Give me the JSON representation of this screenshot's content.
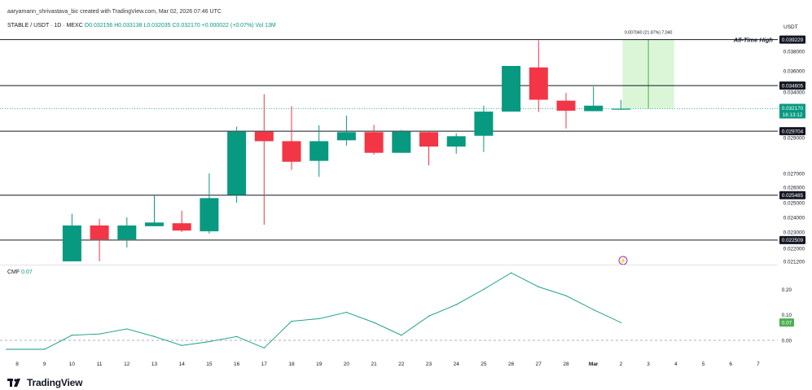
{
  "header": {
    "author_line": "aaryamann_shrivastava_bic created with TradingView.com, Mar 02, 2026 07:46 UTC",
    "symbol": "STABLE / USDT · 1D · MEXC",
    "ohlc": "O0.032156 H0.033138 L0.032035 C0.032170 +0.000022 (+0.07%)",
    "volume": "Vol 13M"
  },
  "currency_label": "USDT",
  "indicator": {
    "name": "CMF",
    "value": "0.07"
  },
  "brand": {
    "name": "TradingView"
  },
  "annotations": {
    "ath_label": "All-Time High",
    "measure_label": "0.007040 (21.87%) 7,040"
  },
  "chart_data": [
    {
      "type": "candlestick",
      "symbol": "STABLE / USDT",
      "interval": "1D",
      "exchange": "MEXC",
      "x_tick_labels": [
        "8",
        "9",
        "10",
        "11",
        "12",
        "13",
        "14",
        "15",
        "16",
        "17",
        "18",
        "19",
        "20",
        "21",
        "22",
        "23",
        "24",
        "25",
        "26",
        "27",
        "28",
        "Mar",
        "2",
        "3",
        "4",
        "5",
        "6",
        "7"
      ],
      "y_tick_labels": [
        "0.038000",
        "0.036000",
        "0.034000",
        "0.029000",
        "0.027000",
        "0.026000",
        "0.025000",
        "0.024000",
        "0.023000",
        "0.022000",
        "0.021200"
      ],
      "ylim": [
        0.0208,
        0.04
      ],
      "candles": [
        {
          "date": "10",
          "open": 0.0212,
          "high": 0.02425,
          "low": 0.0212,
          "close": 0.02345,
          "color": "up"
        },
        {
          "date": "11",
          "open": 0.02345,
          "high": 0.0239,
          "low": 0.0212,
          "close": 0.02255,
          "color": "down"
        },
        {
          "date": "12",
          "open": 0.02255,
          "high": 0.024,
          "low": 0.02205,
          "close": 0.02345,
          "color": "up"
        },
        {
          "date": "13",
          "open": 0.0234,
          "high": 0.02545,
          "low": 0.0234,
          "close": 0.02365,
          "color": "up"
        },
        {
          "date": "14",
          "open": 0.0236,
          "high": 0.02445,
          "low": 0.023,
          "close": 0.0231,
          "color": "down"
        },
        {
          "date": "15",
          "open": 0.02305,
          "high": 0.027,
          "low": 0.0229,
          "close": 0.0253,
          "color": "up"
        },
        {
          "date": "16",
          "open": 0.0255,
          "high": 0.0302,
          "low": 0.025,
          "close": 0.02965,
          "color": "up"
        },
        {
          "date": "17",
          "open": 0.02965,
          "high": 0.03375,
          "low": 0.0235,
          "close": 0.0288,
          "color": "down"
        },
        {
          "date": "18",
          "open": 0.0288,
          "high": 0.03245,
          "low": 0.0272,
          "close": 0.02765,
          "color": "down"
        },
        {
          "date": "19",
          "open": 0.0277,
          "high": 0.03035,
          "low": 0.02675,
          "close": 0.0288,
          "color": "up"
        },
        {
          "date": "20",
          "open": 0.02885,
          "high": 0.0314,
          "low": 0.02855,
          "close": 0.0296,
          "color": "up"
        },
        {
          "date": "21",
          "open": 0.0296,
          "high": 0.0304,
          "low": 0.02805,
          "close": 0.02815,
          "color": "down"
        },
        {
          "date": "22",
          "open": 0.02815,
          "high": 0.02985,
          "low": 0.02815,
          "close": 0.02965,
          "color": "up"
        },
        {
          "date": "23",
          "open": 0.0296,
          "high": 0.02975,
          "low": 0.02745,
          "close": 0.0285,
          "color": "down"
        },
        {
          "date": "24",
          "open": 0.0285,
          "high": 0.02945,
          "low": 0.0281,
          "close": 0.02915,
          "color": "up"
        },
        {
          "date": "25",
          "open": 0.0292,
          "high": 0.0325,
          "low": 0.0282,
          "close": 0.03185,
          "color": "up"
        },
        {
          "date": "26",
          "open": 0.03185,
          "high": 0.0365,
          "low": 0.03185,
          "close": 0.0365,
          "color": "up"
        },
        {
          "date": "27",
          "open": 0.03635,
          "high": 0.03915,
          "low": 0.0318,
          "close": 0.03315,
          "color": "down"
        },
        {
          "date": "28",
          "open": 0.03305,
          "high": 0.0339,
          "low": 0.03,
          "close": 0.03195,
          "color": "down"
        },
        {
          "date": "Mar",
          "open": 0.0319,
          "high": 0.0345,
          "low": 0.0319,
          "close": 0.0325,
          "color": "up"
        },
        {
          "date": "2",
          "open": 0.032156,
          "high": 0.033138,
          "low": 0.032035,
          "close": 0.03217,
          "color": "up"
        }
      ],
      "horizontal_levels": [
        {
          "value": 0.039229,
          "label": "0.039229"
        },
        {
          "value": 0.034605,
          "label": "0.034605"
        },
        {
          "value": 0.029704,
          "label": "0.029704"
        },
        {
          "value": 0.025485,
          "label": "0.025485"
        },
        {
          "value": 0.022509,
          "label": "0.022509"
        }
      ],
      "last_price": {
        "value": 0.03217,
        "label": "0.032170",
        "countdown": "16:13:12"
      },
      "measure_box": {
        "from": 0.03217,
        "to": 0.039229,
        "from_date": "2",
        "to_date": "4"
      },
      "colors": {
        "up": "#089981",
        "down": "#f23645",
        "level_line": "#131722",
        "measure_fill": "#d6f5d3",
        "last_price_dotted": "#089981",
        "marker": "#9c27b0"
      },
      "grid": false,
      "legend": "none"
    },
    {
      "type": "line",
      "name": "CMF",
      "x": [
        "8",
        "9",
        "10",
        "11",
        "12",
        "13",
        "14",
        "15",
        "16",
        "17",
        "18",
        "19",
        "20",
        "21",
        "22",
        "23",
        "24",
        "25",
        "26",
        "27",
        "28",
        "Mar",
        "2"
      ],
      "values": [
        -0.035,
        -0.035,
        0.02,
        0.025,
        0.045,
        0.015,
        -0.02,
        -0.005,
        0.015,
        -0.03,
        0.075,
        0.085,
        0.11,
        0.07,
        0.02,
        0.095,
        0.14,
        0.2,
        0.265,
        0.21,
        0.175,
        0.12,
        0.07
      ],
      "y_tick_labels": [
        "0.20",
        "0.10",
        "0.00"
      ],
      "ylim": [
        -0.06,
        0.3
      ],
      "zero_line": "dashed",
      "last_value_label": "0.07",
      "colors": {
        "line": "#089981",
        "last_value_bg": "#4caf50"
      }
    }
  ]
}
